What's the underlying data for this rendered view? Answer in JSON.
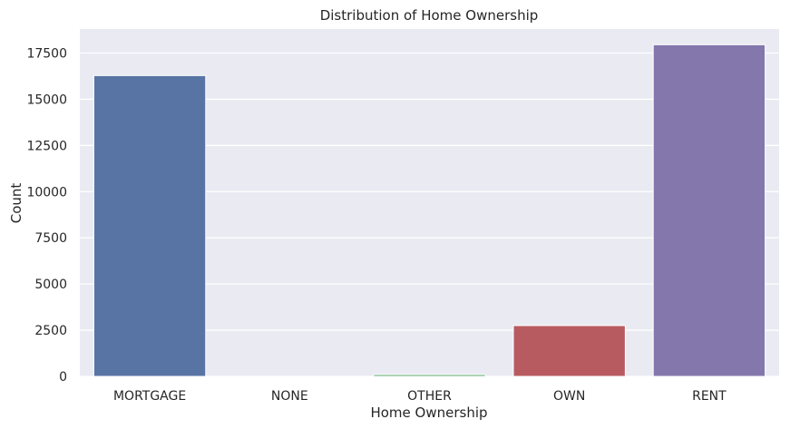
{
  "chart_data": {
    "type": "bar",
    "title": "Distribution of Home Ownership",
    "xlabel": "Home Ownership",
    "ylabel": "Count",
    "categories": [
      "MORTGAGE",
      "NONE",
      "OTHER",
      "OWN",
      "RENT"
    ],
    "values": [
      16280,
      3,
      97,
      2750,
      17950
    ],
    "ylim": [
      0,
      18800
    ],
    "yticks": [
      0,
      2500,
      5000,
      7500,
      10000,
      12500,
      15000,
      17500
    ],
    "grid": true,
    "colors": [
      "#5874a5",
      "#dd8452",
      "#55a868",
      "#b85b60",
      "#8377ac"
    ],
    "plot_background": "#eaeaf2",
    "grid_color": "#ffffff"
  }
}
